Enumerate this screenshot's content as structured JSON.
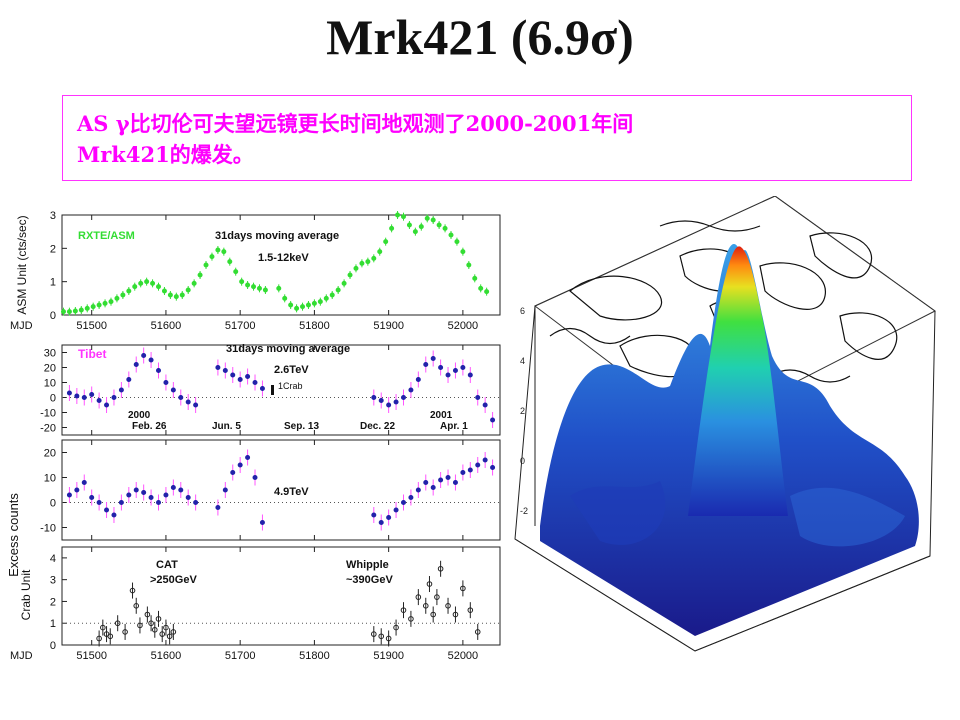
{
  "slide": {
    "title": "Mrk421 (6.9σ)",
    "note_line1": "AS γ比切伦可夫望远镜更长时间地观测了2000-2001年间",
    "note_line2": "Mrk421的爆发。",
    "accent_color": "#ff33ff"
  },
  "chart_data": [
    {
      "type": "scatter",
      "panel": "asm",
      "label_instrument": "RXTE/ASM",
      "label_average": "31days moving average",
      "label_energy": "1.5-12keV",
      "ylabel": "ASM Unit (cts/sec)",
      "xlabel": "MJD",
      "xlim": [
        51460,
        52050
      ],
      "ylim": [
        0,
        3
      ],
      "xticks": [
        "51500",
        "51600",
        "51700",
        "51800",
        "51900",
        "52000"
      ],
      "yticks": [
        "0",
        "1",
        "2",
        "3"
      ],
      "color": "#33dd33",
      "x": [
        51462,
        51470,
        51478,
        51486,
        51494,
        51502,
        51510,
        51518,
        51526,
        51534,
        51542,
        51550,
        51558,
        51566,
        51574,
        51582,
        51590,
        51598,
        51606,
        51614,
        51622,
        51630,
        51638,
        51646,
        51654,
        51662,
        51670,
        51678,
        51686,
        51694,
        51702,
        51710,
        51718,
        51726,
        51734,
        51752,
        51760,
        51768,
        51776,
        51784,
        51792,
        51800,
        51808,
        51816,
        51824,
        51832,
        51840,
        51848,
        51856,
        51864,
        51872,
        51880,
        51888,
        51896,
        51904,
        51912,
        51920,
        51928,
        51936,
        51944,
        51952,
        51960,
        51968,
        51976,
        51984,
        51992,
        52000,
        52008,
        52016,
        52024,
        52032
      ],
      "y": [
        0.1,
        0.1,
        0.12,
        0.15,
        0.2,
        0.25,
        0.3,
        0.35,
        0.4,
        0.5,
        0.6,
        0.72,
        0.85,
        0.95,
        1.0,
        0.95,
        0.85,
        0.72,
        0.6,
        0.55,
        0.6,
        0.75,
        0.95,
        1.2,
        1.5,
        1.75,
        1.95,
        1.9,
        1.6,
        1.3,
        1.0,
        0.9,
        0.85,
        0.8,
        0.75,
        0.8,
        0.5,
        0.3,
        0.2,
        0.25,
        0.3,
        0.35,
        0.4,
        0.5,
        0.6,
        0.75,
        0.95,
        1.2,
        1.4,
        1.55,
        1.6,
        1.7,
        1.9,
        2.2,
        2.6,
        3.0,
        2.95,
        2.7,
        2.5,
        2.65,
        2.9,
        2.85,
        2.7,
        2.6,
        2.4,
        2.2,
        1.9,
        1.5,
        1.1,
        0.8,
        0.7
      ]
    },
    {
      "type": "scatter",
      "panel": "tibet_2.6tev",
      "label_instrument": "Tibet",
      "label_average": "31days moving average",
      "label_energy": "2.6TeV",
      "label_crab": "1Crab",
      "label_years": [
        "2000",
        "2001"
      ],
      "label_dates": [
        "Feb. 26",
        "Jun. 5",
        "Sep. 13",
        "Dec. 22",
        "Apr. 1"
      ],
      "ylabel": "Excess counts",
      "xlim": [
        51460,
        52050
      ],
      "ylim": [
        -25,
        35
      ],
      "yticks": [
        "30",
        "20",
        "10",
        "0",
        "-10",
        "-20"
      ],
      "color": "#2222aa",
      "error_color": "#ff55ff",
      "x": [
        51470,
        51480,
        51490,
        51500,
        51510,
        51520,
        51530,
        51540,
        51550,
        51560,
        51570,
        51580,
        51590,
        51600,
        51610,
        51620,
        51630,
        51640,
        51670,
        51680,
        51690,
        51700,
        51710,
        51720,
        51730,
        51880,
        51890,
        51900,
        51910,
        51920,
        51930,
        51940,
        51950,
        51960,
        51970,
        51980,
        51990,
        52000,
        52010,
        52020,
        52030,
        52040
      ],
      "y": [
        3,
        1,
        0,
        2,
        -2,
        -5,
        0,
        5,
        12,
        22,
        28,
        25,
        18,
        10,
        5,
        0,
        -3,
        -5,
        20,
        18,
        15,
        12,
        14,
        10,
        6,
        0,
        -2,
        -5,
        -3,
        0,
        5,
        12,
        22,
        26,
        20,
        15,
        18,
        20,
        15,
        0,
        -5,
        -15
      ]
    },
    {
      "type": "scatter",
      "panel": "tibet_4.9tev",
      "label_energy": "4.9TeV",
      "xlim": [
        51460,
        52050
      ],
      "ylim": [
        -15,
        25
      ],
      "yticks": [
        "20",
        "10",
        "0",
        "-10"
      ],
      "color": "#2222aa",
      "error_color": "#ff55ff",
      "x": [
        51470,
        51480,
        51490,
        51500,
        51510,
        51520,
        51530,
        51540,
        51550,
        51560,
        51570,
        51580,
        51590,
        51600,
        51610,
        51620,
        51630,
        51640,
        51670,
        51680,
        51690,
        51700,
        51710,
        51720,
        51730,
        51880,
        51890,
        51900,
        51910,
        51920,
        51930,
        51940,
        51950,
        51960,
        51970,
        51980,
        51990,
        52000,
        52010,
        52020,
        52030,
        52040
      ],
      "y": [
        3,
        5,
        8,
        2,
        0,
        -3,
        -5,
        0,
        3,
        5,
        4,
        2,
        0,
        3,
        6,
        5,
        2,
        0,
        -2,
        5,
        12,
        15,
        18,
        10,
        -8,
        -5,
        -8,
        -6,
        -3,
        0,
        2,
        5,
        8,
        6,
        9,
        10,
        8,
        12,
        13,
        15,
        17,
        14
      ]
    },
    {
      "type": "scatter",
      "panel": "crab_unit",
      "label_cat": "CAT",
      "label_cat_energy": ">250GeV",
      "label_whipple": "Whipple",
      "label_whipple_energy": "~390GeV",
      "ylabel": "Crab Unit",
      "xlabel": "MJD",
      "xlim": [
        51460,
        52050
      ],
      "ylim": [
        0,
        4.5
      ],
      "xticks": [
        "51500",
        "51600",
        "51700",
        "51800",
        "51900",
        "52000"
      ],
      "yticks": [
        "0",
        "1",
        "2",
        "3",
        "4"
      ],
      "color": "#222222",
      "x": [
        51510,
        51515,
        51520,
        51525,
        51535,
        51545,
        51555,
        51560,
        51565,
        51575,
        51580,
        51585,
        51590,
        51595,
        51600,
        51605,
        51610,
        51880,
        51890,
        51900,
        51910,
        51920,
        51930,
        51940,
        51950,
        51955,
        51960,
        51965,
        51970,
        51980,
        51990,
        52000,
        52010,
        52020
      ],
      "y": [
        0.3,
        0.8,
        0.5,
        0.4,
        1.0,
        0.6,
        2.5,
        1.8,
        0.9,
        1.4,
        1.0,
        0.7,
        1.2,
        0.5,
        0.8,
        0.4,
        0.6,
        0.5,
        0.4,
        0.3,
        0.8,
        1.6,
        1.2,
        2.2,
        1.8,
        2.8,
        1.4,
        2.2,
        3.5,
        1.8,
        1.4,
        2.6,
        1.6,
        0.6
      ]
    }
  ]
}
